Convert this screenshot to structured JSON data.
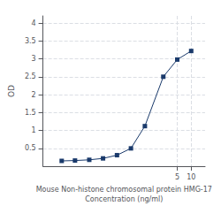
{
  "chart_data": {
    "type": "line",
    "xlabel": "Mouse Non-histone chromosomal protein HMG-17\nConcentration (ng/ml)",
    "ylabel": "OD",
    "x": [
      0.016,
      0.031,
      0.063,
      0.125,
      0.25,
      0.5,
      1.0,
      2.5,
      5.0,
      10.0
    ],
    "values": [
      0.148,
      0.158,
      0.178,
      0.218,
      0.308,
      0.498,
      1.12,
      2.5,
      2.98,
      3.22
    ],
    "color": "#1a3a6b",
    "marker": "square",
    "log": "x",
    "xlim": [
      0.00630957344480193,
      19.952623149688797
    ],
    "xticks": [
      5,
      10
    ],
    "ylim": [
      0,
      4.2
    ],
    "yticks": [
      0.5,
      1.0,
      1.5,
      2.0,
      2.5,
      3.0,
      3.5,
      4.0
    ],
    "grid": true
  }
}
